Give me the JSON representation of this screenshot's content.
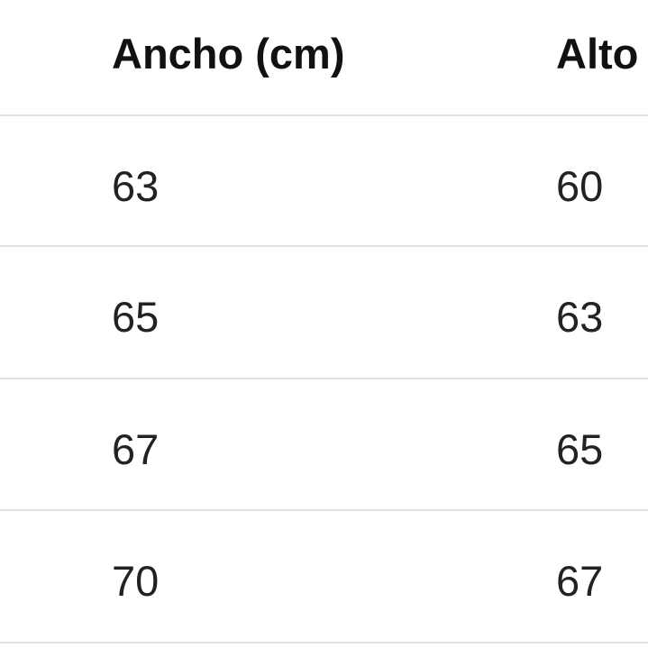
{
  "table": {
    "headers": [
      "Ancho (cm)",
      "Alto"
    ],
    "rows": [
      [
        "63",
        "60"
      ],
      [
        "65",
        "63"
      ],
      [
        "67",
        "65"
      ],
      [
        "70",
        "67"
      ]
    ]
  }
}
